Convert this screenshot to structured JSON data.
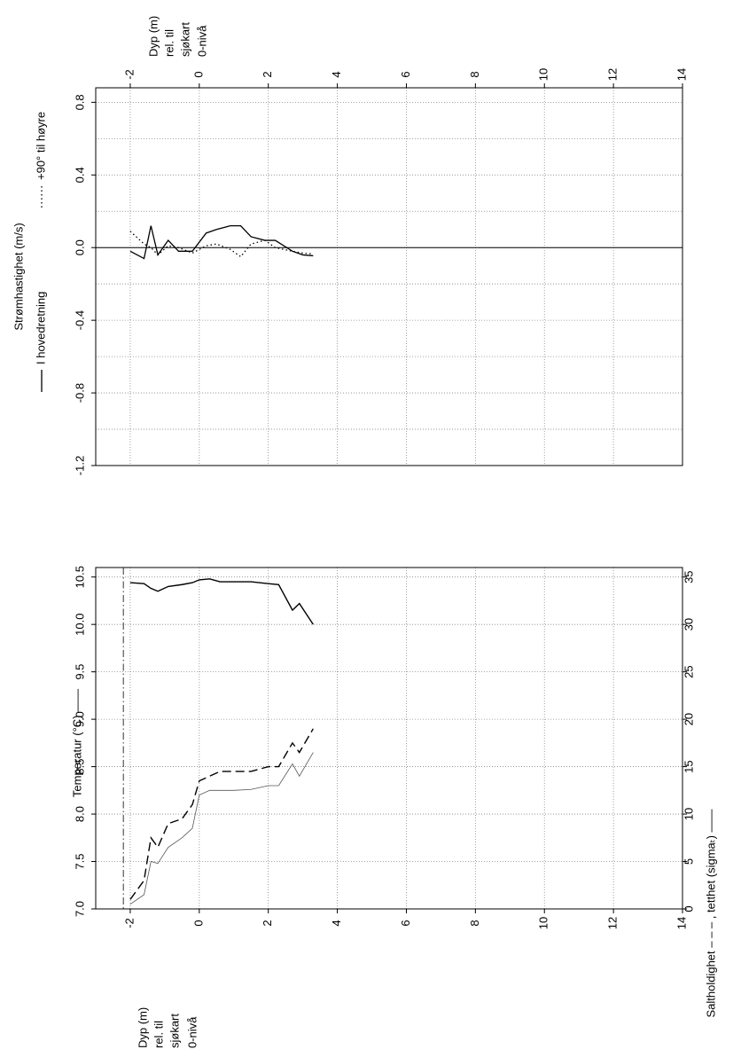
{
  "chart_data": [
    {
      "type": "line",
      "ylabel": "Strømhastighet (m/s)",
      "xlabel": [
        "Dyp (m)",
        "rel. til",
        "sjøkart",
        "0-nivå"
      ],
      "x": [
        -2,
        -1.6,
        -1.4,
        -1.2,
        -0.9,
        -0.6,
        -0.2,
        0.2,
        0.5,
        0.9,
        1.2,
        1.5,
        1.9,
        2.2,
        2.7,
        3.0,
        3.3
      ],
      "series": [
        {
          "name": "I hovedretning",
          "color": "#000000",
          "dash": "solid",
          "values": [
            -0.02,
            -0.06,
            0.12,
            -0.04,
            0.04,
            -0.02,
            -0.02,
            0.08,
            0.1,
            0.12,
            0.12,
            0.06,
            0.04,
            0.04,
            -0.02,
            -0.04,
            -0.045
          ]
        },
        {
          "name": "+90° til høyre",
          "color": "#000000",
          "dash": "dotted",
          "values": [
            0.09,
            0.02,
            0.0,
            -0.04,
            0.01,
            0.0,
            -0.03,
            0.01,
            0.02,
            -0.01,
            -0.05,
            0.02,
            0.04,
            0.0,
            -0.02,
            -0.03,
            -0.035
          ]
        }
      ],
      "xlim": [
        -3,
        14
      ],
      "xticks": [
        -2,
        0,
        2,
        4,
        6,
        8,
        10,
        12,
        14
      ],
      "ylim": [
        -1.2,
        0.88
      ],
      "yticks": [
        -1.2,
        -0.8,
        -0.4,
        {
          "value": 0,
          "label": "0.0"
        },
        0.4,
        0.8
      ],
      "yminor": [
        -1.0,
        -0.6,
        -0.2,
        0.2,
        0.6
      ],
      "zero_line": true,
      "grid": true
    },
    {
      "type": "line",
      "ylabel": "Temperatur (°C) ——",
      "y2label": "Saltholdighet – – – , tetthet (sigmaₜ) ——",
      "xlabel": [
        "Dyp (m)",
        "rel. til",
        "sjøkart",
        "0-nivå"
      ],
      "x": [
        -2,
        -1.6,
        -1.4,
        -1.2,
        -0.9,
        -0.5,
        -0.2,
        0,
        0.3,
        0.6,
        1.0,
        1.5,
        2.0,
        2.3,
        2.7,
        2.9,
        3.3
      ],
      "series": [
        {
          "color": "#000000",
          "dash": "solid",
          "width": 1.4,
          "values": [
            10.44,
            10.43,
            10.38,
            10.35,
            10.4,
            10.42,
            10.44,
            10.47,
            10.48,
            10.45,
            10.45,
            10.45,
            10.43,
            10.42,
            10.15,
            10.22,
            10.0
          ]
        },
        {
          "color": "#000000",
          "dash": "dashed",
          "width": 1.4,
          "axis": "y2",
          "values": [
            1,
            3,
            7.5,
            6.5,
            9,
            9.5,
            11,
            13.5,
            14,
            14.5,
            14.5,
            14.5,
            15,
            15,
            17.5,
            16.5,
            19
          ]
        },
        {
          "color": "#555555",
          "dash": "solid",
          "width": 0.8,
          "axis": "y2",
          "values": [
            0.5,
            1.5,
            5,
            4.8,
            6.5,
            7.5,
            8.5,
            12,
            12.5,
            12.5,
            12.5,
            12.6,
            13,
            13,
            15.3,
            14,
            16.5
          ]
        }
      ],
      "xlim": [
        -3,
        14
      ],
      "xticks": [
        -2,
        0,
        2,
        4,
        6,
        8,
        10,
        12,
        14
      ],
      "ylim": [
        7.0,
        10.6
      ],
      "yticks": [
        {
          "value": 7,
          "label": "7.0"
        },
        7.5,
        {
          "value": 8,
          "label": "8.0"
        },
        8.5,
        {
          "value": 9,
          "label": "9.0"
        },
        9.5,
        {
          "value": 10,
          "label": "10.0"
        },
        10.5
      ],
      "y2lim": [
        0,
        36
      ],
      "y2ticks": [
        0,
        5,
        10,
        15,
        20,
        25,
        30,
        35
      ],
      "vline": -2.2,
      "grid": true
    }
  ]
}
